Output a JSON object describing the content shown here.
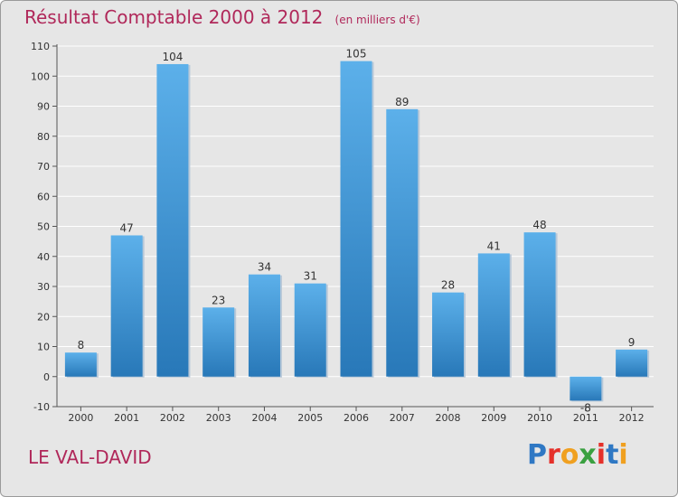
{
  "header": {
    "title": "Résultat Comptable 2000 à 2012",
    "subtitle": "(en milliers d'€)"
  },
  "footer": {
    "city": "LE VAL-DAVID",
    "brand": "Proxiti"
  },
  "colors": {
    "title": "#b0285a",
    "bar_top": "#5cb0ea",
    "bar_bottom": "#2878b8",
    "background": "#e6e6e6",
    "grid": "#ffffff",
    "brand_letters": [
      "#2f78c4",
      "#e5302a",
      "#f0a020",
      "#3aa040",
      "#e5302a",
      "#2f78c4",
      "#f0a020"
    ]
  },
  "chart_data": {
    "type": "bar",
    "title": "Résultat Comptable 2000 à 2012",
    "subtitle": "(en milliers d'€)",
    "categories": [
      "2000",
      "2001",
      "2002",
      "2003",
      "2004",
      "2005",
      "2006",
      "2007",
      "2008",
      "2009",
      "2010",
      "2011",
      "2012"
    ],
    "values": [
      8,
      47,
      104,
      23,
      34,
      31,
      105,
      89,
      28,
      41,
      48,
      -8,
      9
    ],
    "value_labels": [
      "8",
      "47",
      "104",
      "23",
      "34",
      "31",
      "105",
      "89",
      "28",
      "41",
      "48",
      "-8",
      "9"
    ],
    "ylim": [
      -10,
      110
    ],
    "yticks": [
      -10,
      0,
      10,
      20,
      30,
      40,
      50,
      60,
      70,
      80,
      90,
      100,
      110
    ],
    "ytick_labels": [
      "-10",
      "0",
      "10",
      "20",
      "30",
      "40",
      "50",
      "60",
      "70",
      "80",
      "90",
      "100",
      "110"
    ],
    "grid": true,
    "xlabel": "",
    "ylabel": ""
  }
}
